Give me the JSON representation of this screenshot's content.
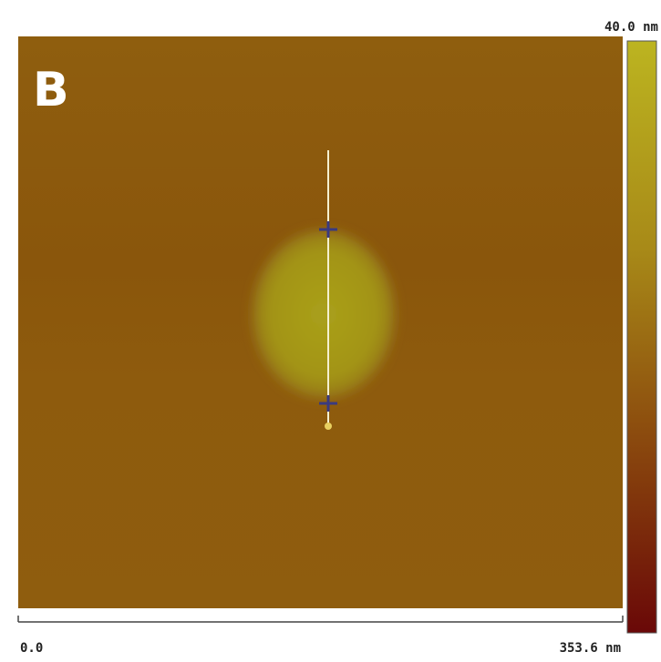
{
  "panel_label": "B",
  "colorbar": {
    "max_label": "40.0 nm"
  },
  "scale_bar": {
    "start_label": "0.0",
    "end_label": "353.6 nm"
  }
}
